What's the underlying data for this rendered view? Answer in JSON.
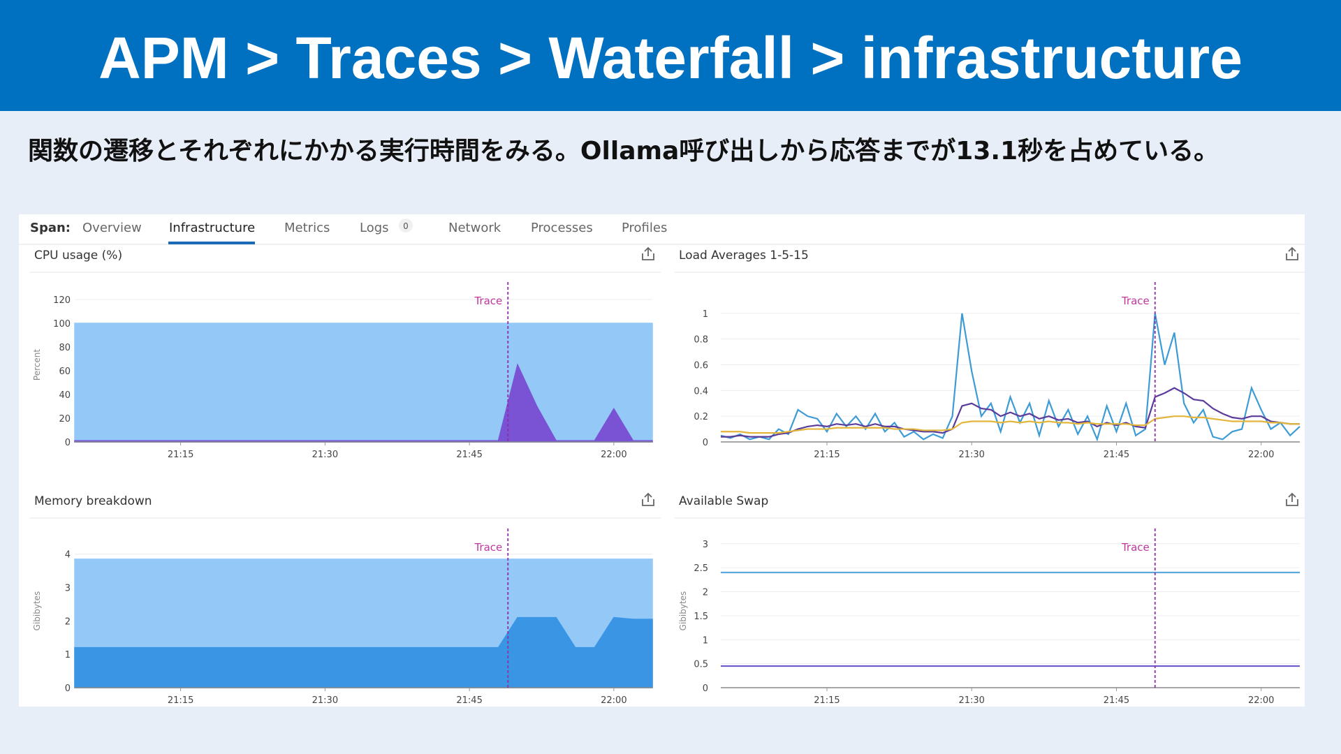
{
  "header": {
    "title": "APM > Traces > Waterfall > infrastructure"
  },
  "description": "関数の遷移とそれぞれにかかる実行時間をみる。Ollama呼び出しから応答までが13.1秒を占めている。",
  "tabs": {
    "label": "Span:",
    "items": [
      "Overview",
      "Infrastructure",
      "Metrics",
      "Logs",
      "Network",
      "Processes",
      "Profiles"
    ],
    "active": 1,
    "logs_badge": 0
  },
  "chart_data": [
    {
      "type": "area",
      "title": "CPU usage (%)",
      "ylabel": "Percent",
      "x": [
        "21:04",
        "21:06",
        "21:08",
        "21:10",
        "21:12",
        "21:14",
        "21:16",
        "21:18",
        "21:20",
        "21:22",
        "21:24",
        "21:26",
        "21:28",
        "21:30",
        "21:32",
        "21:34",
        "21:36",
        "21:38",
        "21:40",
        "21:42",
        "21:44",
        "21:46",
        "21:48",
        "21:50",
        "21:52",
        "21:54",
        "21:56",
        "21:58",
        "22:00",
        "22:02",
        "22:04"
      ],
      "xlim": [
        "21:04",
        "22:04"
      ],
      "xticks": [
        "21:15",
        "21:30",
        "21:45",
        "22:00"
      ],
      "ylim": [
        0,
        130
      ],
      "yticks": [
        0,
        20,
        40,
        60,
        80,
        100,
        120
      ],
      "grid": true,
      "annotation": {
        "text": "Trace",
        "x": "21:49"
      },
      "series": [
        {
          "color": "#93c8f7",
          "values": [
            100,
            100,
            100,
            100,
            100,
            100,
            100,
            100,
            100,
            100,
            100,
            100,
            100,
            100,
            100,
            100,
            100,
            100,
            100,
            100,
            100,
            100,
            100,
            100,
            100,
            100,
            100,
            100,
            100,
            100,
            100
          ]
        },
        {
          "color": "#7a52d4",
          "values": [
            1,
            1,
            1,
            1,
            1,
            1,
            1,
            1,
            1,
            1,
            1,
            1,
            1,
            1,
            1,
            1,
            1,
            1,
            1,
            1,
            1,
            1,
            1,
            65,
            30,
            1,
            1,
            1,
            28,
            1,
            1
          ]
        }
      ]
    },
    {
      "type": "line",
      "title": "Load Averages 1-5-15",
      "x": [
        "21:04",
        "21:05",
        "21:06",
        "21:07",
        "21:08",
        "21:09",
        "21:10",
        "21:11",
        "21:12",
        "21:13",
        "21:14",
        "21:15",
        "21:16",
        "21:17",
        "21:18",
        "21:19",
        "21:20",
        "21:21",
        "21:22",
        "21:23",
        "21:24",
        "21:25",
        "21:26",
        "21:27",
        "21:28",
        "21:29",
        "21:30",
        "21:31",
        "21:32",
        "21:33",
        "21:34",
        "21:35",
        "21:36",
        "21:37",
        "21:38",
        "21:39",
        "21:40",
        "21:41",
        "21:42",
        "21:43",
        "21:44",
        "21:45",
        "21:46",
        "21:47",
        "21:48",
        "21:49",
        "21:50",
        "21:51",
        "21:52",
        "21:53",
        "21:54",
        "21:55",
        "21:56",
        "21:57",
        "21:58",
        "21:59",
        "22:00",
        "22:01",
        "22:02",
        "22:03",
        "22:04"
      ],
      "xlim": [
        "21:04",
        "22:04"
      ],
      "xticks": [
        "21:15",
        "21:30",
        "21:45",
        "22:00"
      ],
      "ylim": [
        0,
        1.2
      ],
      "yticks": [
        0,
        0.2,
        0.4,
        0.6,
        0.8,
        1
      ],
      "grid": true,
      "annotation": {
        "text": "Trace",
        "x": "21:49"
      },
      "series": [
        {
          "color": "#3d9bd6",
          "values": [
            0.05,
            0.03,
            0.06,
            0.02,
            0.04,
            0.02,
            0.1,
            0.06,
            0.25,
            0.2,
            0.18,
            0.08,
            0.22,
            0.12,
            0.2,
            0.1,
            0.22,
            0.08,
            0.15,
            0.04,
            0.08,
            0.02,
            0.06,
            0.03,
            0.2,
            1.0,
            0.55,
            0.2,
            0.3,
            0.08,
            0.35,
            0.15,
            0.3,
            0.05,
            0.32,
            0.12,
            0.25,
            0.06,
            0.2,
            0.02,
            0.28,
            0.08,
            0.3,
            0.05,
            0.1,
            1.0,
            0.6,
            0.85,
            0.3,
            0.15,
            0.25,
            0.04,
            0.02,
            0.08,
            0.1,
            0.42,
            0.25,
            0.1,
            0.15,
            0.05,
            0.12
          ]
        },
        {
          "color": "#5a3b9b",
          "values": [
            0.04,
            0.04,
            0.05,
            0.04,
            0.04,
            0.04,
            0.06,
            0.07,
            0.1,
            0.12,
            0.13,
            0.12,
            0.14,
            0.13,
            0.14,
            0.12,
            0.14,
            0.12,
            0.12,
            0.1,
            0.09,
            0.08,
            0.08,
            0.07,
            0.1,
            0.28,
            0.3,
            0.26,
            0.25,
            0.2,
            0.23,
            0.2,
            0.22,
            0.18,
            0.2,
            0.17,
            0.18,
            0.15,
            0.16,
            0.12,
            0.15,
            0.13,
            0.15,
            0.12,
            0.11,
            0.35,
            0.38,
            0.42,
            0.38,
            0.33,
            0.32,
            0.26,
            0.22,
            0.19,
            0.18,
            0.2,
            0.2,
            0.16,
            0.15,
            0.14,
            0.14
          ]
        },
        {
          "color": "#e3b53a",
          "values": [
            0.08,
            0.08,
            0.08,
            0.07,
            0.07,
            0.07,
            0.07,
            0.08,
            0.09,
            0.1,
            0.1,
            0.1,
            0.11,
            0.11,
            0.11,
            0.11,
            0.11,
            0.11,
            0.1,
            0.1,
            0.1,
            0.09,
            0.09,
            0.09,
            0.1,
            0.15,
            0.16,
            0.16,
            0.16,
            0.15,
            0.16,
            0.15,
            0.16,
            0.15,
            0.16,
            0.15,
            0.15,
            0.14,
            0.15,
            0.14,
            0.14,
            0.14,
            0.14,
            0.13,
            0.13,
            0.18,
            0.19,
            0.2,
            0.2,
            0.19,
            0.19,
            0.18,
            0.17,
            0.16,
            0.16,
            0.16,
            0.16,
            0.15,
            0.15,
            0.14,
            0.14
          ]
        }
      ]
    },
    {
      "type": "area",
      "title": "Memory breakdown",
      "ylabel": "Gibibytes",
      "x": [
        "21:04",
        "21:06",
        "21:08",
        "21:10",
        "21:12",
        "21:14",
        "21:16",
        "21:18",
        "21:20",
        "21:22",
        "21:24",
        "21:26",
        "21:28",
        "21:30",
        "21:32",
        "21:34",
        "21:36",
        "21:38",
        "21:40",
        "21:42",
        "21:44",
        "21:46",
        "21:48",
        "21:50",
        "21:52",
        "21:54",
        "21:56",
        "21:58",
        "22:00",
        "22:02",
        "22:04"
      ],
      "xlim": [
        "21:04",
        "22:04"
      ],
      "xticks": [
        "21:15",
        "21:30",
        "21:45",
        "22:00"
      ],
      "ylim": [
        0,
        4.6
      ],
      "yticks": [
        0,
        1,
        2,
        3,
        4
      ],
      "grid": true,
      "annotation": {
        "text": "Trace",
        "x": "21:49"
      },
      "series": [
        {
          "color": "#93c8f7",
          "values": [
            3.85,
            3.85,
            3.85,
            3.85,
            3.85,
            3.85,
            3.85,
            3.85,
            3.85,
            3.85,
            3.85,
            3.85,
            3.85,
            3.85,
            3.85,
            3.85,
            3.85,
            3.85,
            3.85,
            3.85,
            3.85,
            3.85,
            3.85,
            3.85,
            3.85,
            3.85,
            3.85,
            3.85,
            3.85,
            3.85,
            3.85
          ]
        },
        {
          "color": "#3b95e5",
          "values": [
            1.2,
            1.2,
            1.2,
            1.2,
            1.2,
            1.2,
            1.2,
            1.2,
            1.2,
            1.2,
            1.2,
            1.2,
            1.2,
            1.2,
            1.2,
            1.2,
            1.2,
            1.2,
            1.2,
            1.2,
            1.2,
            1.2,
            1.2,
            2.1,
            2.1,
            2.1,
            1.2,
            1.2,
            2.1,
            2.05,
            2.05
          ]
        }
      ]
    },
    {
      "type": "line",
      "title": "Available Swap",
      "ylabel": "Gibibytes",
      "x": [
        "21:04",
        "21:06",
        "21:08",
        "21:10",
        "21:12",
        "21:14",
        "21:16",
        "21:18",
        "21:20",
        "21:22",
        "21:24",
        "21:26",
        "21:28",
        "21:30",
        "21:32",
        "21:34",
        "21:36",
        "21:38",
        "21:40",
        "21:42",
        "21:44",
        "21:46",
        "21:48",
        "21:50",
        "21:52",
        "21:54",
        "21:56",
        "21:58",
        "22:00",
        "22:02",
        "22:04"
      ],
      "xlim": [
        "21:04",
        "22:04"
      ],
      "xticks": [
        "21:15",
        "21:30",
        "21:45",
        "22:00"
      ],
      "ylim": [
        0,
        3.2
      ],
      "yticks": [
        0,
        0.5,
        1,
        1.5,
        2,
        2.5,
        3
      ],
      "grid": true,
      "annotation": {
        "text": "Trace",
        "x": "21:49"
      },
      "series": [
        {
          "color": "#5ba6dc",
          "values": [
            2.4,
            2.4,
            2.4,
            2.4,
            2.4,
            2.4,
            2.4,
            2.4,
            2.4,
            2.4,
            2.4,
            2.4,
            2.4,
            2.4,
            2.4,
            2.4,
            2.4,
            2.4,
            2.4,
            2.4,
            2.4,
            2.4,
            2.4,
            2.4,
            2.4,
            2.4,
            2.4,
            2.4,
            2.4,
            2.4,
            2.4
          ]
        },
        {
          "color": "#6a5acd",
          "values": [
            0.45,
            0.45,
            0.45,
            0.45,
            0.45,
            0.45,
            0.45,
            0.45,
            0.45,
            0.45,
            0.45,
            0.45,
            0.45,
            0.45,
            0.45,
            0.45,
            0.45,
            0.45,
            0.45,
            0.45,
            0.45,
            0.45,
            0.45,
            0.45,
            0.45,
            0.45,
            0.45,
            0.45,
            0.45,
            0.45,
            0.45
          ]
        }
      ]
    }
  ]
}
